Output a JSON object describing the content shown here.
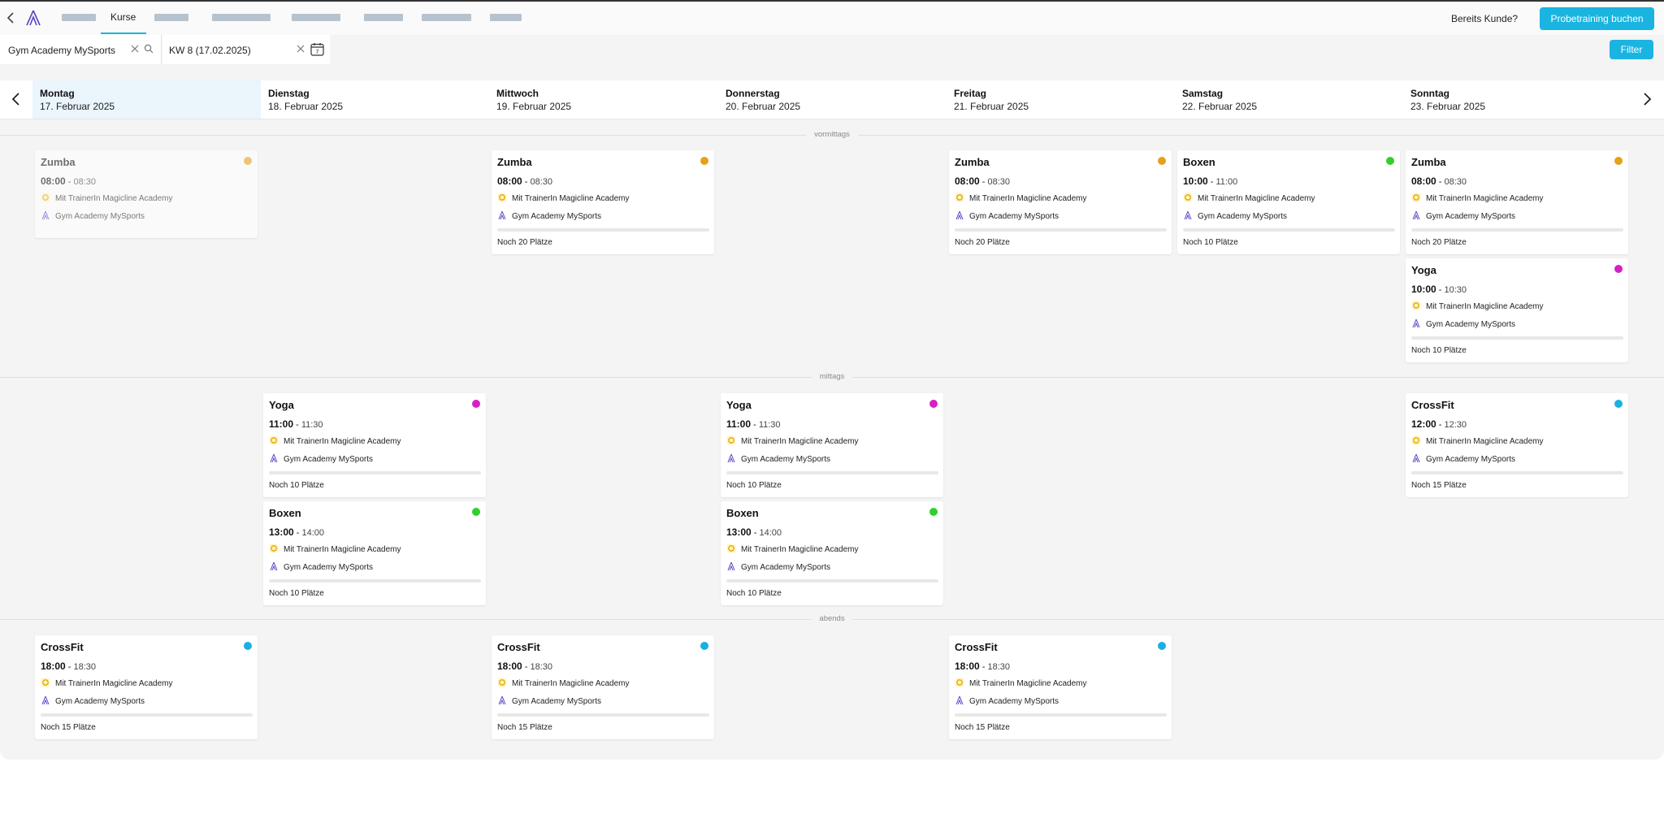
{
  "nav": {
    "active_tab": "Kurse",
    "already_customer": "Bereits Kunde?",
    "trial_button": "Probetraining buchen"
  },
  "filters": {
    "studio_value": "Gym Academy MySports",
    "week_value": "KW 8 (17.02.2025)",
    "calendar_day": "7",
    "filter_button": "Filter"
  },
  "days": [
    {
      "name": "Montag",
      "date": "17. Februar 2025"
    },
    {
      "name": "Dienstag",
      "date": "18. Februar 2025"
    },
    {
      "name": "Mittwoch",
      "date": "19. Februar 2025"
    },
    {
      "name": "Donnerstag",
      "date": "20. Februar 2025"
    },
    {
      "name": "Freitag",
      "date": "21. Februar 2025"
    },
    {
      "name": "Samstag",
      "date": "22. Februar 2025"
    },
    {
      "name": "Sonntag",
      "date": "23. Februar 2025"
    }
  ],
  "sections": {
    "morning": "vormittags",
    "noon": "mittags",
    "evening": "abends"
  },
  "colors": {
    "accent": "#1ab4e0",
    "zumba": "#e6a118",
    "boxen": "#2fd12f",
    "yoga": "#d61fc5",
    "crossfit": "#1ab0e0"
  },
  "cards": [
    {
      "title": "Zumba",
      "start": "08:00",
      "end": "08:30",
      "trainer": "Mit TrainerIn Magicline Academy",
      "studio": "Gym Academy MySports",
      "free": ""
    },
    {
      "title": "Zumba",
      "start": "08:00",
      "end": "08:30",
      "trainer": "Mit TrainerIn Magicline Academy",
      "studio": "Gym Academy MySports",
      "free": "Noch 20 Plätze"
    },
    {
      "title": "Zumba",
      "start": "08:00",
      "end": "08:30",
      "trainer": "Mit TrainerIn Magicline Academy",
      "studio": "Gym Academy MySports",
      "free": "Noch 20 Plätze"
    },
    {
      "title": "Boxen",
      "start": "10:00",
      "end": "11:00",
      "trainer": "Mit TrainerIn Magicline Academy",
      "studio": "Gym Academy MySports",
      "free": "Noch 10 Plätze"
    },
    {
      "title": "Zumba",
      "start": "08:00",
      "end": "08:30",
      "trainer": "Mit TrainerIn Magicline Academy",
      "studio": "Gym Academy MySports",
      "free": "Noch 20 Plätze"
    },
    {
      "title": "Yoga",
      "start": "10:00",
      "end": "10:30",
      "trainer": "Mit TrainerIn Magicline Academy",
      "studio": "Gym Academy MySports",
      "free": "Noch 10 Plätze"
    },
    {
      "title": "Yoga",
      "start": "11:00",
      "end": "11:30",
      "trainer": "Mit TrainerIn Magicline Academy",
      "studio": "Gym Academy MySports",
      "free": "Noch 10 Plätze"
    },
    {
      "title": "Yoga",
      "start": "11:00",
      "end": "11:30",
      "trainer": "Mit TrainerIn Magicline Academy",
      "studio": "Gym Academy MySports",
      "free": "Noch 10 Plätze"
    },
    {
      "title": "CrossFit",
      "start": "12:00",
      "end": "12:30",
      "trainer": "Mit TrainerIn Magicline Academy",
      "studio": "Gym Academy MySports",
      "free": "Noch 15 Plätze"
    },
    {
      "title": "Boxen",
      "start": "13:00",
      "end": "14:00",
      "trainer": "Mit TrainerIn Magicline Academy",
      "studio": "Gym Academy MySports",
      "free": "Noch 10 Plätze"
    },
    {
      "title": "Boxen",
      "start": "13:00",
      "end": "14:00",
      "trainer": "Mit TrainerIn Magicline Academy",
      "studio": "Gym Academy MySports",
      "free": "Noch 10 Plätze"
    },
    {
      "title": "CrossFit",
      "start": "18:00",
      "end": "18:30",
      "trainer": "Mit TrainerIn Magicline Academy",
      "studio": "Gym Academy MySports",
      "free": "Noch 15 Plätze"
    },
    {
      "title": "CrossFit",
      "start": "18:00",
      "end": "18:30",
      "trainer": "Mit TrainerIn Magicline Academy",
      "studio": "Gym Academy MySports",
      "free": "Noch 15 Plätze"
    },
    {
      "title": "CrossFit",
      "start": "18:00",
      "end": "18:30",
      "trainer": "Mit TrainerIn Magicline Academy",
      "studio": "Gym Academy MySports",
      "free": "Noch 15 Plätze"
    }
  ]
}
